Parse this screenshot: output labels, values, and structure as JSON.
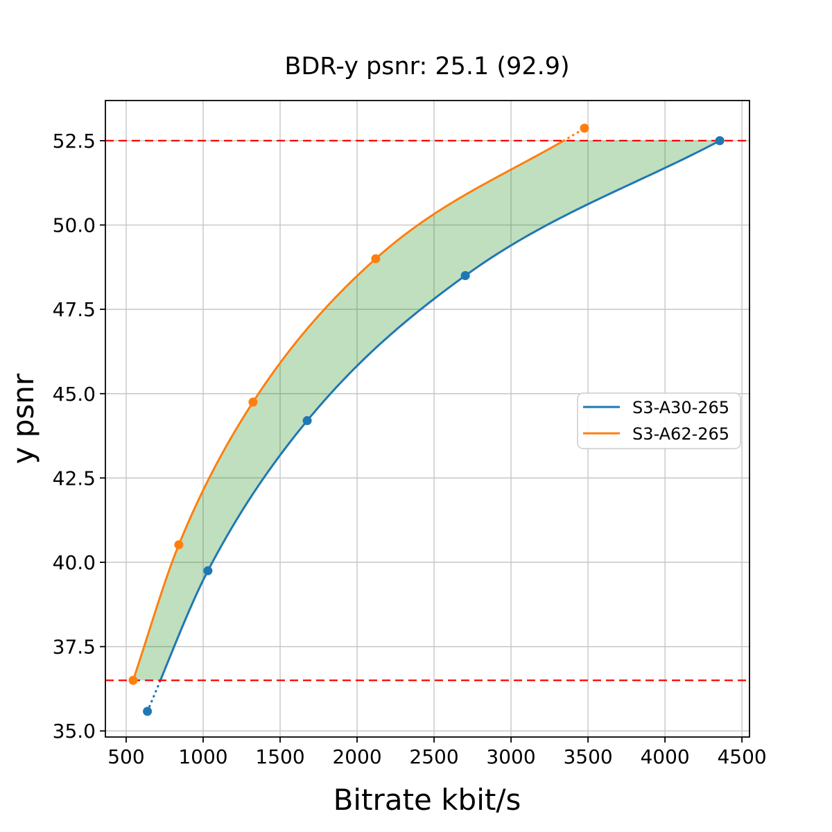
{
  "chart_data": {
    "type": "line",
    "title": "BDR-y psnr: 25.1 (92.9)",
    "xlabel": "Bitrate kbit/s",
    "ylabel": "y psnr",
    "xlim": [
      365,
      4549
    ],
    "ylim": [
      34.82,
      53.69
    ],
    "grid": true,
    "grid_color": "#c6c6c6",
    "background_color": "#ffffff",
    "x_ticks": [
      500,
      1000,
      1500,
      2000,
      2500,
      3000,
      3500,
      4000,
      4500
    ],
    "x_tick_labels": [
      "500",
      "1000",
      "1500",
      "2000",
      "2500",
      "3000",
      "3500",
      "4000",
      "4500"
    ],
    "y_ticks": [
      35.0,
      37.5,
      40.0,
      42.5,
      45.0,
      47.5,
      50.0,
      52.5
    ],
    "y_tick_labels": [
      "35.0",
      "37.5",
      "40.0",
      "42.5",
      "45.0",
      "47.5",
      "50.0",
      "52.5"
    ],
    "series": [
      {
        "name": "S3-A30-265",
        "color": "#1f77b4",
        "marker": "circle",
        "points": [
          [
            638,
            35.58
          ],
          [
            1031,
            39.75
          ],
          [
            1676,
            44.2
          ],
          [
            2703,
            48.5
          ],
          [
            4356,
            52.5
          ]
        ]
      },
      {
        "name": "S3-A62-265",
        "color": "#ff7f0e",
        "marker": "circle",
        "points": [
          [
            545,
            36.5
          ],
          [
            842,
            40.52
          ],
          [
            1324,
            44.75
          ],
          [
            2121,
            49.0
          ],
          [
            3477,
            52.87
          ]
        ]
      }
    ],
    "overlap_band": {
      "lower_psnr": 36.5,
      "upper_psnr": 52.5,
      "line_color": "#ff0000",
      "line_style": "dashed",
      "fill_color": "#008000",
      "fill_opacity": 0.25
    },
    "legend": {
      "position": "center-right",
      "entries": [
        "S3-A30-265",
        "S3-A62-265"
      ]
    },
    "bdr_summary": {
      "bdr_psnr": "25.1",
      "bdr_percent": "92.9"
    }
  }
}
